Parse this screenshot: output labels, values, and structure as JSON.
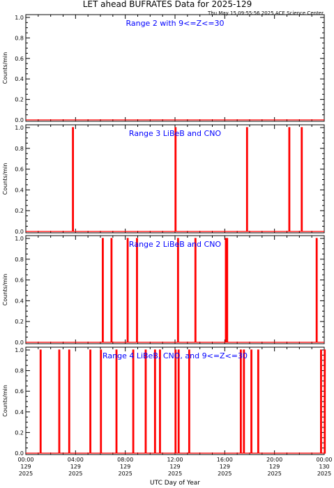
{
  "figure": {
    "title": "LET ahead BUFRATES Data for 2025-129",
    "timestamp": "Thu May 15 09:55:56 2025 ACE Science Center",
    "xlabel": "UTC Day of Year"
  },
  "colors": {
    "trace": "#ff0000",
    "panel_label": "#0000ff",
    "axis": "#000000"
  },
  "x_ticks": [
    {
      "hour": 0,
      "time": "00:00",
      "doy": "129",
      "year": "2025"
    },
    {
      "hour": 4,
      "time": "04:00",
      "doy": "129",
      "year": "2025"
    },
    {
      "hour": 8,
      "time": "08:00",
      "doy": "129",
      "year": "2025"
    },
    {
      "hour": 12,
      "time": "12:00",
      "doy": "129",
      "year": "2025"
    },
    {
      "hour": 16,
      "time": "16:00",
      "doy": "129",
      "year": "2025"
    },
    {
      "hour": 20,
      "time": "20:00",
      "doy": "129",
      "year": "2025"
    },
    {
      "hour": 24,
      "time": "00:00",
      "doy": "130",
      "year": "2025"
    }
  ],
  "chart_data": [
    {
      "type": "line",
      "title": "Range 2 with 9<=Z<=30",
      "ylabel": "Counts/min",
      "xlim": [
        0,
        24
      ],
      "ylim": [
        0,
        1
      ],
      "y_ticks": [
        "0.0",
        "0.2",
        "0.4",
        "0.6",
        "0.8",
        "1.0"
      ],
      "spikes": []
    },
    {
      "type": "line",
      "title": "Range 3 LiBeB and CNO",
      "ylabel": "Counts/min",
      "xlim": [
        0,
        24
      ],
      "ylim": [
        0,
        1
      ],
      "y_ticks": [
        "0.0",
        "0.2",
        "0.4",
        "0.6",
        "0.8",
        "1.0"
      ],
      "spikes": [
        3.75,
        12.0,
        17.75,
        21.15,
        22.15
      ]
    },
    {
      "type": "line",
      "title": "Range 2 LiBeB and CNO",
      "ylabel": "Counts/min",
      "xlim": [
        0,
        24
      ],
      "ylim": [
        0,
        1
      ],
      "y_ticks": [
        "0.0",
        "0.2",
        "0.4",
        "0.6",
        "0.8",
        "1.0"
      ],
      "spikes": [
        6.15,
        6.85,
        8.15,
        8.9,
        12.2,
        13.6,
        16.05,
        16.15,
        23.35
      ]
    },
    {
      "type": "line",
      "title": "Range 4 LiBeB, CNO, and 9<=Z<=30",
      "ylabel": "Counts/min",
      "xlim": [
        0,
        24
      ],
      "ylim": [
        0,
        1
      ],
      "y_ticks": [
        "0.0",
        "0.2",
        "0.4",
        "0.6",
        "0.8",
        "1.0"
      ],
      "spikes": [
        1.15,
        2.65,
        3.45,
        5.15,
        6.0,
        7.25,
        8.6,
        9.6,
        10.35,
        10.75,
        12.0,
        12.25,
        13.1,
        17.25,
        17.5,
        18.1,
        18.65,
        23.7,
        24.0
      ]
    }
  ]
}
